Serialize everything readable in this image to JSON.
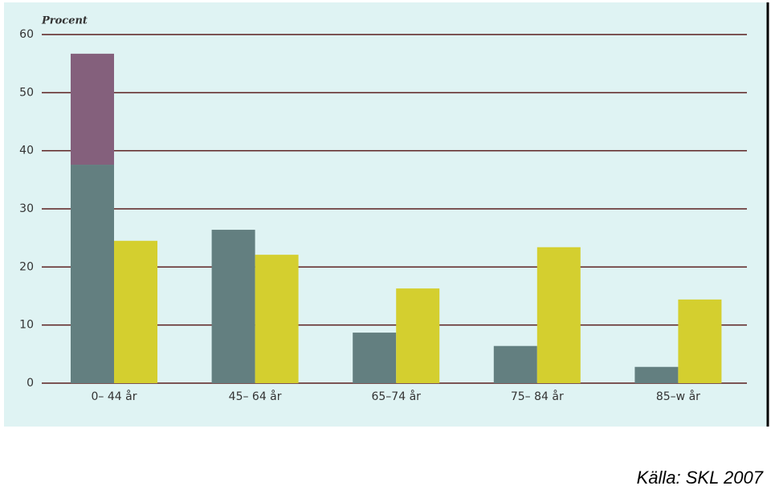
{
  "chart_data": {
    "type": "bar",
    "y_label": "Procent",
    "source": "Källa: SKL 2007",
    "categories": [
      "0– 44 år",
      "45– 64 år",
      "65–74 år",
      "75– 84 år",
      "85–w år"
    ],
    "series": [
      {
        "color": "#637f80",
        "values": [
          37.6,
          26.4,
          8.7,
          6.4,
          2.8
        ],
        "stack": "a"
      },
      {
        "color": "#84607c",
        "values": [
          19.1,
          null,
          null,
          null,
          null
        ],
        "stack": "a"
      },
      {
        "color": "#d4cf2f",
        "values": [
          24.5,
          22.1,
          16.3,
          23.4,
          14.4
        ],
        "stack": "b"
      }
    ],
    "ylim": [
      0,
      60
    ],
    "yticks": [
      0,
      10,
      20,
      30,
      40,
      50,
      60
    ],
    "grid": true
  }
}
